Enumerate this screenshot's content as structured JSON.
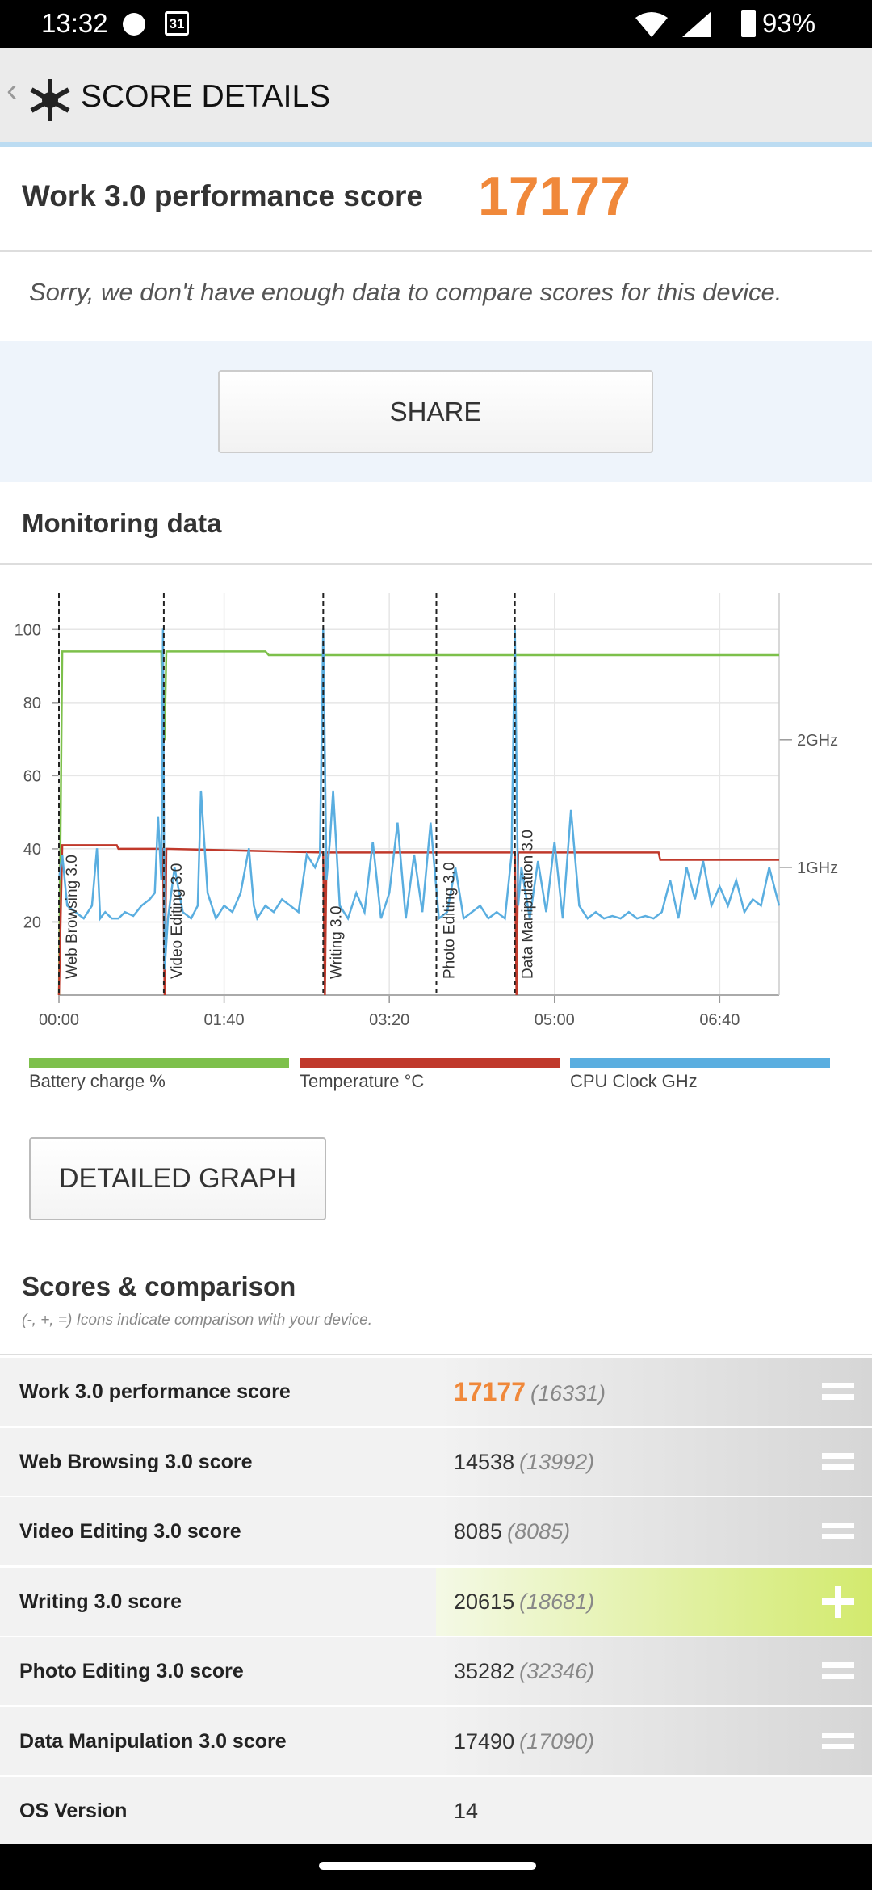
{
  "status_bar": {
    "time": "13:32",
    "calendar": "31",
    "battery": "93%"
  },
  "header": {
    "title": "SCORE DETAILS"
  },
  "score": {
    "label": "Work 3.0 performance score",
    "value": "17177"
  },
  "note": "Sorry, we don't have enough data to compare scores for this device.",
  "share_button": "SHARE",
  "monitoring": {
    "title": "Monitoring data"
  },
  "chart_data": {
    "type": "line",
    "xlim": [
      0,
      436
    ],
    "xticks": [
      {
        "value": 0,
        "label": "00:00"
      },
      {
        "value": 100,
        "label": "01:40"
      },
      {
        "value": 200,
        "label": "03:20"
      },
      {
        "value": 300,
        "label": "05:00"
      },
      {
        "value": 400,
        "label": "06:40"
      }
    ],
    "ylim": [
      0,
      110
    ],
    "yticks": [
      20,
      40,
      60,
      80,
      100
    ],
    "y2lim": [
      0,
      3.15
    ],
    "y2ticks": [
      {
        "value": 1,
        "label": "1GHz"
      },
      {
        "value": 2,
        "label": "2GHz"
      }
    ],
    "grid": true,
    "segments": [
      {
        "label": "Web Browsing 3.0",
        "x": 0
      },
      {
        "label": "Video Editing 3.0",
        "x": 63.5
      },
      {
        "label": "Writing 3.0",
        "x": 160
      },
      {
        "label": "Photo Editing 3.0",
        "x": 228.5
      },
      {
        "label": "Data Manipulation 3.0",
        "x": 276
      }
    ],
    "series": [
      {
        "name": "Battery charge %",
        "color": "#7dc04b",
        "x": [
          0,
          2,
          62,
          63,
          64,
          65,
          125,
          127,
          436
        ],
        "values": [
          0,
          94,
          94,
          70,
          70,
          94,
          94,
          93,
          93
        ]
      },
      {
        "name": "Temperature °C",
        "color": "#c0392b",
        "x": [
          0,
          2,
          35,
          36,
          63,
          64,
          65,
          160,
          161,
          162,
          276,
          277,
          278,
          363,
          364,
          436
        ],
        "values": [
          0,
          41,
          41,
          40,
          40,
          0,
          40,
          39,
          0,
          39,
          39,
          0,
          39,
          39,
          37,
          37
        ]
      },
      {
        "name": "CPU Clock GHz",
        "color": "#5aaee0",
        "axis": "y2",
        "x": [
          0,
          2,
          5,
          10,
          15,
          20,
          23,
          25,
          28,
          32,
          36,
          40,
          45,
          50,
          55,
          58,
          60,
          62,
          63,
          64,
          66,
          70,
          75,
          80,
          84,
          86,
          90,
          95,
          100,
          105,
          110,
          115,
          118,
          120,
          125,
          130,
          135,
          140,
          145,
          150,
          155,
          158,
          160,
          162,
          164,
          166,
          170,
          175,
          180,
          185,
          190,
          195,
          200,
          205,
          210,
          215,
          220,
          225,
          230,
          235,
          240,
          245,
          250,
          255,
          260,
          265,
          270,
          274,
          276,
          278,
          280,
          285,
          290,
          295,
          300,
          305,
          310,
          315,
          320,
          325,
          330,
          335,
          340,
          345,
          350,
          355,
          360,
          365,
          370,
          375,
          380,
          385,
          390,
          395,
          400,
          405,
          410,
          415,
          420,
          425,
          430,
          436
        ],
        "values": [
          0.9,
          1.1,
          0.7,
          0.65,
          0.6,
          0.7,
          1.15,
          0.6,
          0.65,
          0.6,
          0.6,
          0.65,
          0.62,
          0.7,
          0.75,
          0.8,
          1.4,
          0.9,
          2.87,
          0.2,
          0.6,
          1.0,
          0.65,
          0.6,
          0.7,
          1.6,
          0.8,
          0.6,
          0.7,
          0.65,
          0.8,
          1.15,
          0.7,
          0.6,
          0.7,
          0.65,
          0.75,
          0.7,
          0.65,
          1.1,
          1.0,
          1.1,
          2.87,
          0.9,
          1.2,
          1.6,
          0.7,
          0.6,
          0.8,
          0.65,
          1.2,
          0.6,
          0.8,
          1.35,
          0.6,
          1.1,
          0.65,
          1.35,
          0.6,
          0.65,
          1.0,
          0.6,
          0.65,
          0.7,
          0.6,
          0.65,
          0.6,
          1.1,
          2.87,
          0.7,
          1.0,
          0.6,
          1.05,
          0.65,
          1.2,
          0.6,
          1.45,
          0.7,
          0.6,
          0.65,
          0.6,
          0.62,
          0.6,
          0.65,
          0.6,
          0.62,
          0.6,
          0.65,
          0.9,
          0.6,
          1.0,
          0.75,
          1.05,
          0.7,
          0.85,
          0.7,
          0.9,
          0.65,
          0.75,
          0.7,
          1.0,
          0.7
        ]
      }
    ]
  },
  "detailed_button": "DETAILED GRAPH",
  "scores": {
    "title": "Scores & comparison",
    "subtitle": "(-, +, =) Icons indicate comparison with your device.",
    "rows": [
      {
        "label": "Work 3.0 performance score",
        "score": "17177",
        "compare": "(16331)",
        "indicator": "="
      },
      {
        "label": "Web Browsing 3.0 score",
        "score": "14538",
        "compare": "(13992)",
        "indicator": "="
      },
      {
        "label": "Video Editing 3.0 score",
        "score": "8085",
        "compare": "(8085)",
        "indicator": "="
      },
      {
        "label": "Writing 3.0 score",
        "score": "20615",
        "compare": "(18681)",
        "indicator": "+"
      },
      {
        "label": "Photo Editing 3.0 score",
        "score": "35282",
        "compare": "(32346)",
        "indicator": "="
      },
      {
        "label": "Data Manipulation 3.0 score",
        "score": "17490",
        "compare": "(17090)",
        "indicator": "="
      },
      {
        "label": "OS Version",
        "score": "14"
      }
    ]
  }
}
